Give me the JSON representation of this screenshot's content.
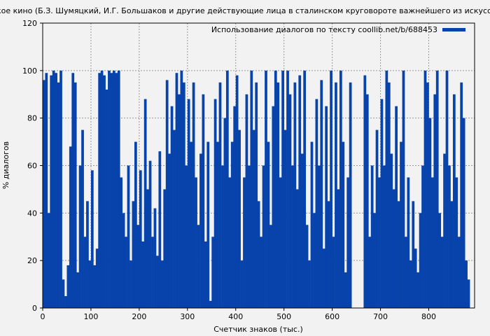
{
  "chart_data": {
    "type": "bar",
    "title": "Советское кино (Б.З. Шумяцкий, И.Г. Большаков и другие действующие лица в сталинском круговороте важнейшего из искусств) (А...",
    "xlabel": "Счетчик знаков (тыс.)",
    "ylabel": "% диалогов",
    "xlim": [
      0,
      895
    ],
    "ylim": [
      0,
      120
    ],
    "xticks": [
      0,
      100,
      200,
      300,
      400,
      500,
      600,
      700,
      800
    ],
    "yticks": [
      0,
      20,
      40,
      60,
      80,
      100,
      120
    ],
    "grid": true,
    "legend": {
      "placement": "top-right",
      "entries": [
        "Использование диалогов по тексту coollib.net/b/688453"
      ]
    },
    "color": "#0743ab",
    "x_step": 5,
    "values": [
      96,
      99,
      40,
      98,
      100,
      99,
      95,
      100,
      12,
      5,
      18,
      68,
      99,
      95,
      15,
      60,
      75,
      30,
      45,
      20,
      58,
      18,
      25,
      99,
      100,
      98,
      92,
      100,
      99,
      100,
      99,
      100,
      55,
      40,
      30,
      60,
      20,
      45,
      70,
      35,
      58,
      28,
      88,
      50,
      62,
      30,
      42,
      22,
      66,
      20,
      50,
      96,
      65,
      85,
      75,
      99,
      90,
      100,
      95,
      60,
      88,
      70,
      95,
      55,
      35,
      65,
      90,
      28,
      70,
      3,
      30,
      88,
      70,
      95,
      60,
      80,
      100,
      55,
      70,
      85,
      98,
      75,
      20,
      55,
      90,
      60,
      100,
      75,
      95,
      45,
      30,
      60,
      100,
      70,
      35,
      85,
      100,
      95,
      55,
      100,
      75,
      100,
      90,
      60,
      95,
      50,
      98,
      65,
      100,
      35,
      20,
      70,
      40,
      88,
      60,
      96,
      25,
      85,
      45,
      100,
      30,
      95,
      50,
      100,
      70,
      15,
      55,
      95,
      0,
      0,
      0,
      0,
      0,
      98,
      90,
      30,
      60,
      40,
      75,
      55,
      88,
      60,
      100,
      95,
      65,
      50,
      85,
      45,
      70,
      100,
      30,
      55,
      20,
      45,
      25,
      15,
      40,
      60,
      100,
      95,
      80,
      55,
      90,
      100,
      40,
      30,
      65,
      100,
      60,
      45,
      90,
      55,
      30,
      95,
      80,
      20,
      12
    ]
  }
}
